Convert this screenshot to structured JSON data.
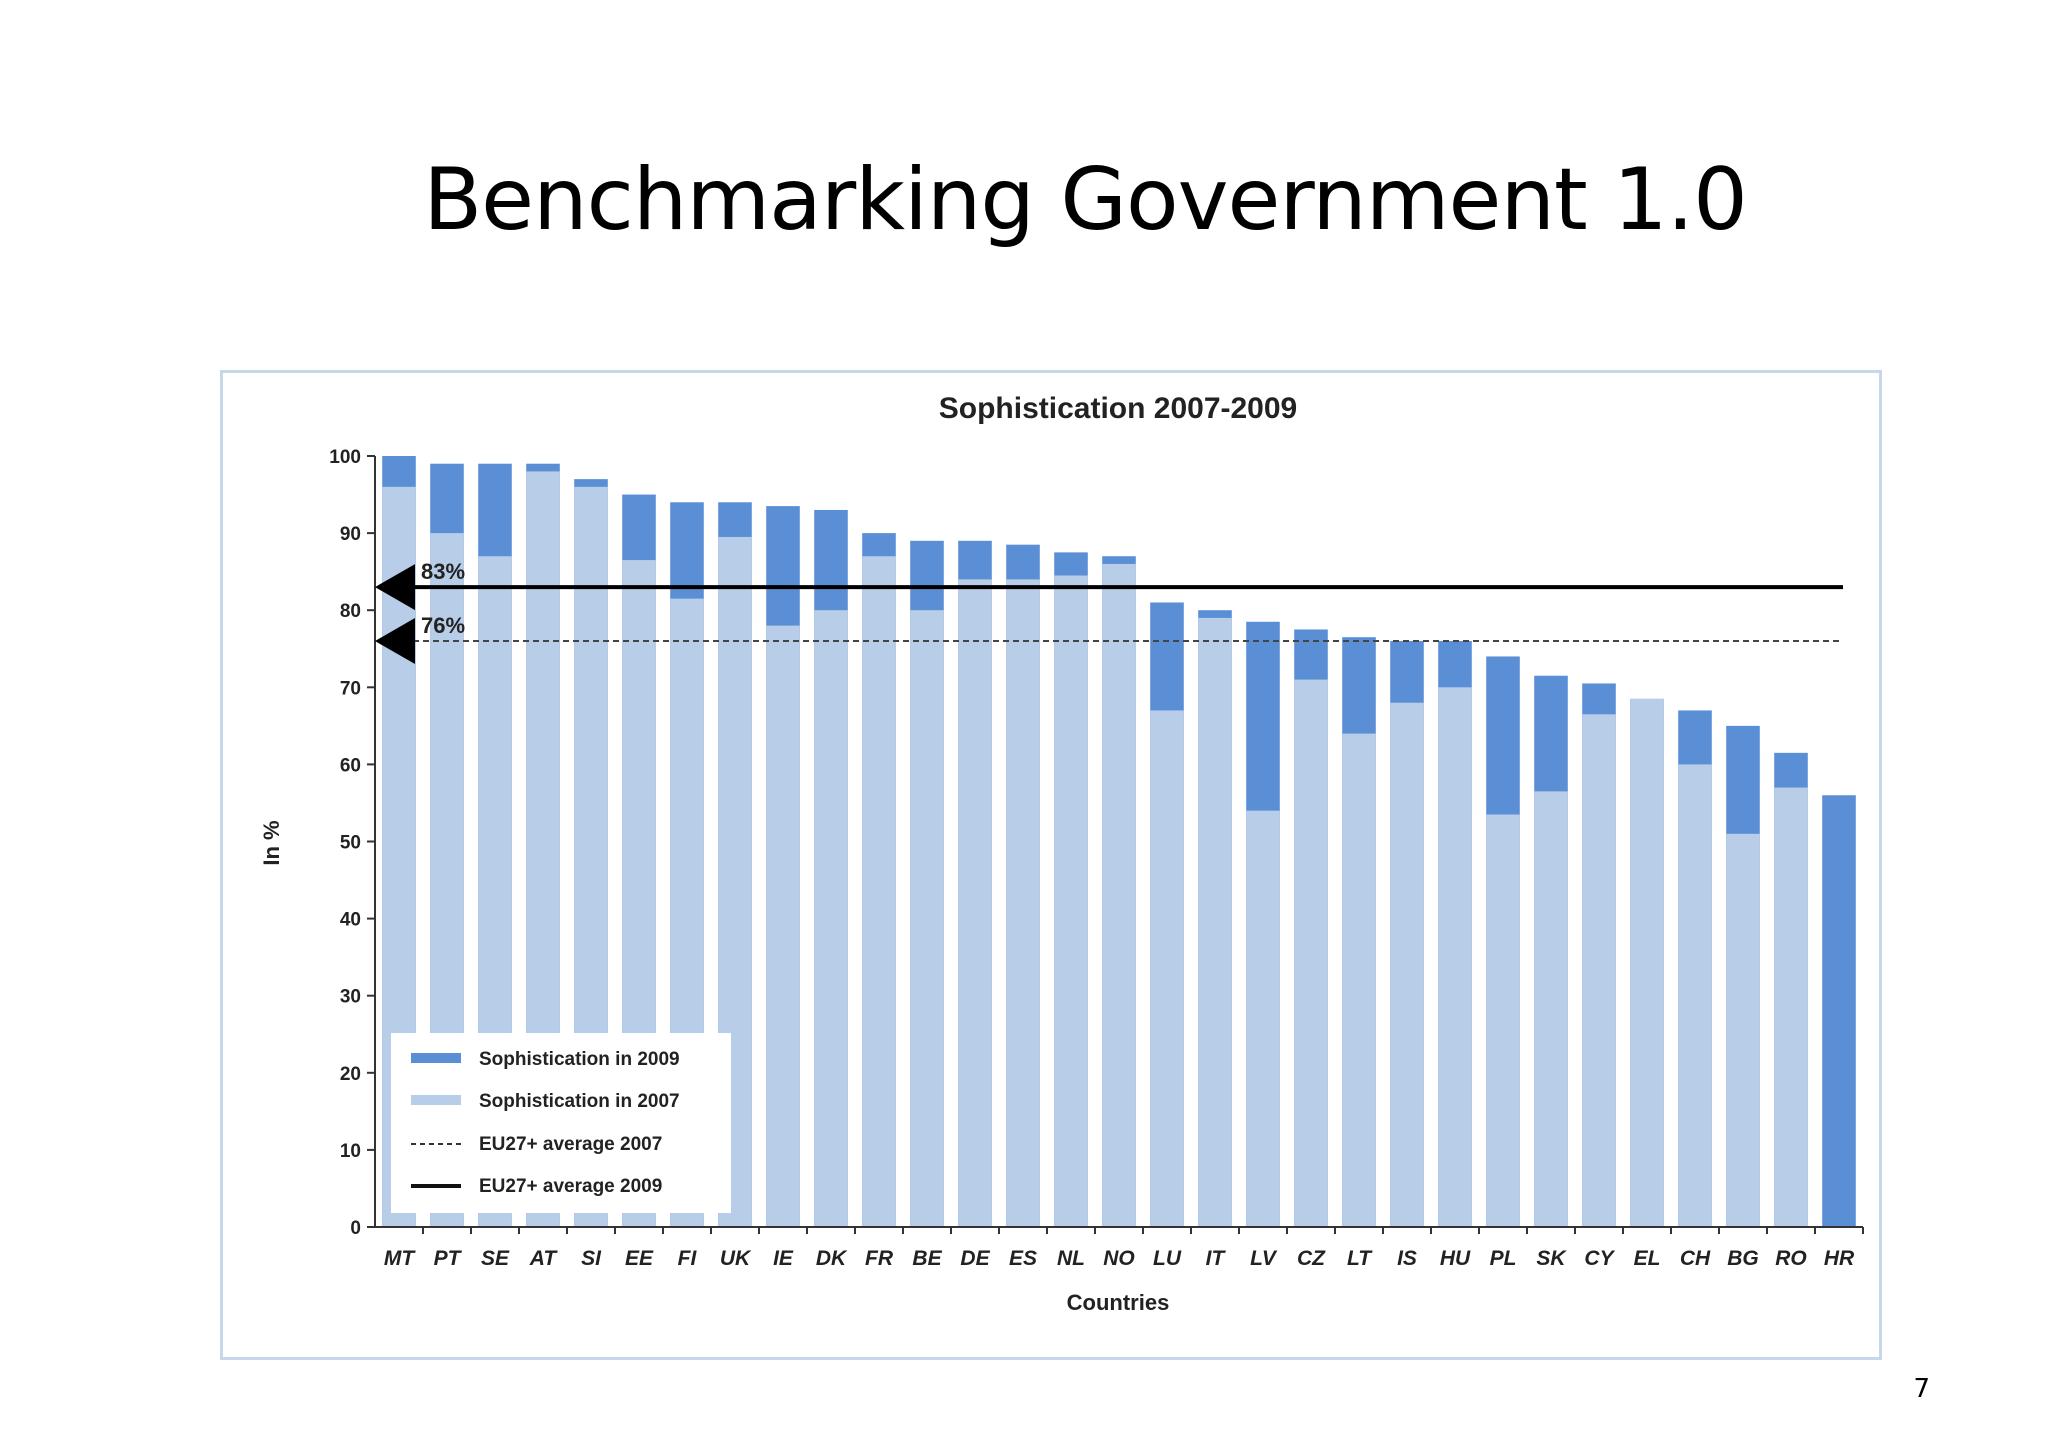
{
  "slide": {
    "title": "Benchmarking Government 1.0",
    "page_number": "7"
  },
  "chart_data": {
    "type": "bar",
    "title": "Sophistication 2007-2009",
    "xlabel": "Countries",
    "ylabel": "In %",
    "ylim": [
      0,
      100
    ],
    "yticks": [
      0,
      10,
      20,
      30,
      40,
      50,
      60,
      70,
      80,
      90,
      100
    ],
    "categories": [
      "MT",
      "PT",
      "SE",
      "AT",
      "SI",
      "EE",
      "FI",
      "UK",
      "IE",
      "DK",
      "FR",
      "BE",
      "DE",
      "ES",
      "NL",
      "NO",
      "LU",
      "IT",
      "LV",
      "CZ",
      "LT",
      "IS",
      "HU",
      "PL",
      "SK",
      "CY",
      "EL",
      "CH",
      "BG",
      "RO",
      "HR"
    ],
    "series": [
      {
        "name": "Sophistication in 2007",
        "color": "#b8cde8",
        "values": [
          96,
          90,
          87,
          98,
          96,
          86.5,
          81.5,
          89.5,
          78,
          80,
          87,
          80,
          84,
          84,
          84.5,
          86,
          67,
          79,
          54,
          71,
          64,
          68,
          70,
          53.5,
          56.5,
          66.5,
          68.5,
          60,
          51,
          57,
          0
        ]
      },
      {
        "name": "Sophistication in 2009",
        "color": "#5b8fd5",
        "values": [
          100,
          99,
          99,
          99,
          97,
          95,
          94,
          94,
          93.5,
          93,
          90,
          89,
          89,
          88.5,
          87.5,
          87,
          81,
          80,
          78.5,
          77.5,
          76.5,
          76,
          76,
          74,
          71.5,
          70.5,
          68.5,
          67,
          65,
          61.5,
          56
        ]
      }
    ],
    "reference_lines": [
      {
        "name": "EU27+ average 2007",
        "value": 76,
        "label": "76%",
        "style": "dashed"
      },
      {
        "name": "EU27+ average 2009",
        "value": 83,
        "label": "83%",
        "style": "solid"
      }
    ],
    "legend": {
      "placement": "bottom-left"
    },
    "grid": false
  }
}
